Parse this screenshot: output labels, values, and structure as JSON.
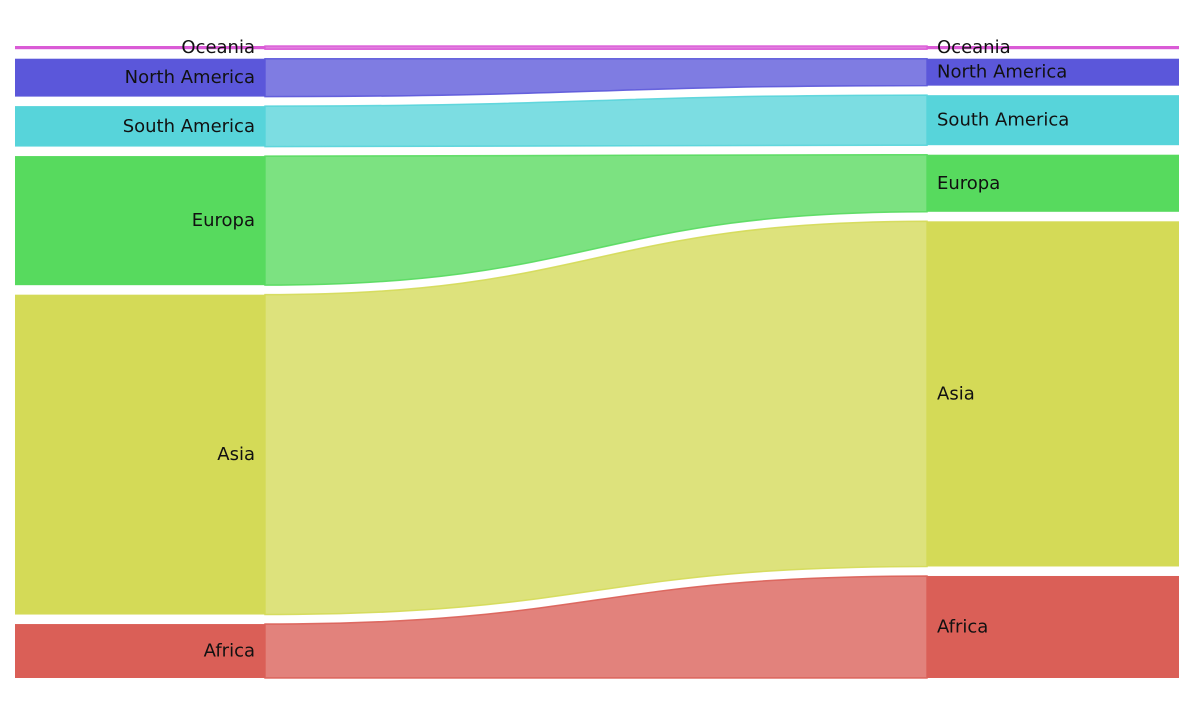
{
  "chart_data": {
    "type": "sankey",
    "title": "",
    "left_nodes": [
      {
        "name": "Oceania",
        "value": 0.5,
        "color": "#da5bd6"
      },
      {
        "name": "North America",
        "value": 5.9,
        "color": "#5b57da"
      },
      {
        "name": "South America",
        "value": 6.3,
        "color": "#57d4da"
      },
      {
        "name": "Europa",
        "value": 20.1,
        "color": "#57da5e"
      },
      {
        "name": "Asia",
        "value": 49.8,
        "color": "#d4da57"
      },
      {
        "name": "Africa",
        "value": 8.4,
        "color": "#da5f57"
      }
    ],
    "right_nodes": [
      {
        "name": "Oceania",
        "value": 0.5,
        "color": "#da5bd6"
      },
      {
        "name": "North America",
        "value": 4.2,
        "color": "#5b57da"
      },
      {
        "name": "South America",
        "value": 7.8,
        "color": "#57d4da"
      },
      {
        "name": "Europa",
        "value": 8.9,
        "color": "#57da5e"
      },
      {
        "name": "Asia",
        "value": 53.8,
        "color": "#d4da57"
      },
      {
        "name": "Africa",
        "value": 15.9,
        "color": "#da5f57"
      }
    ]
  }
}
